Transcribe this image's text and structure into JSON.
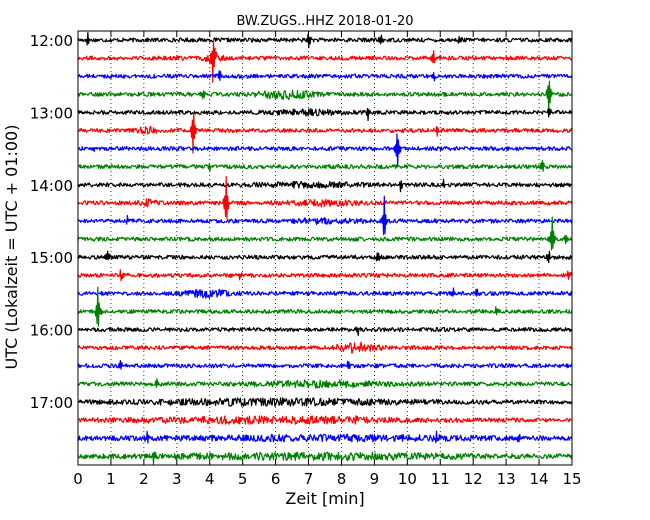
{
  "chart_data": {
    "type": "line",
    "title": "BW.ZUGS..HHZ 2018-01-20",
    "xlabel": "Zeit  [min]",
    "ylabel": "UTC (Lokalzeit = UTC + 01:00)",
    "xlim": [
      0,
      15
    ],
    "x_ticks": [
      0,
      1,
      2,
      3,
      4,
      5,
      6,
      7,
      8,
      9,
      10,
      11,
      12,
      13,
      14,
      15
    ],
    "x_tick_labels": [
      "0",
      "1",
      "2",
      "3",
      "4",
      "5",
      "6",
      "7",
      "8",
      "9",
      "10",
      "11",
      "12",
      "13",
      "14",
      "15"
    ],
    "y_tick_labels": [
      "12:00",
      "13:00",
      "14:00",
      "15:00",
      "16:00",
      "17:00"
    ],
    "trace_cycle_colors": [
      "#000000",
      "#ff0000",
      "#0000ff",
      "#008000"
    ],
    "grid": "vertical dotted",
    "traces": [
      {
        "start": "12:00",
        "color": "#000000",
        "events": [
          {
            "t": 0.3,
            "amp": 0.35
          },
          {
            "t": 7.0,
            "amp": 0.5
          },
          {
            "t": 9.2,
            "amp": 0.4
          },
          {
            "t": 11.6,
            "amp": 0.3
          }
        ],
        "bursts": []
      },
      {
        "start": "12:15",
        "color": "#ff0000",
        "events": [
          {
            "t": 4.1,
            "amp": 1.6
          },
          {
            "t": 10.8,
            "amp": 0.35
          }
        ],
        "bursts": [
          {
            "t": 4.1,
            "width": 0.5,
            "amp": 0.4
          }
        ]
      },
      {
        "start": "12:30",
        "color": "#0000ff",
        "events": [
          {
            "t": 4.3,
            "amp": 0.35
          },
          {
            "t": 10.8,
            "amp": 0.3
          }
        ],
        "bursts": []
      },
      {
        "start": "12:45",
        "color": "#008000",
        "events": [
          {
            "t": 3.8,
            "amp": 0.4
          },
          {
            "t": 14.3,
            "amp": 1.3
          }
        ],
        "bursts": [
          {
            "t": 6.3,
            "width": 1.5,
            "amp": 0.5
          }
        ]
      },
      {
        "start": "13:00",
        "color": "#000000",
        "events": [
          {
            "t": 8.8,
            "amp": 0.45
          },
          {
            "t": 14.3,
            "amp": 0.35
          }
        ],
        "bursts": [
          {
            "t": 7.0,
            "width": 2.0,
            "amp": 0.25
          }
        ]
      },
      {
        "start": "13:15",
        "color": "#ff0000",
        "events": [
          {
            "t": 3.5,
            "amp": 1.5
          },
          {
            "t": 10.9,
            "amp": 0.35
          }
        ],
        "bursts": [
          {
            "t": 2.1,
            "width": 0.5,
            "amp": 0.35
          }
        ]
      },
      {
        "start": "13:30",
        "color": "#0000ff",
        "events": [
          {
            "t": 9.7,
            "amp": 1.3
          },
          {
            "t": 0.5,
            "amp": 0.25
          }
        ],
        "bursts": []
      },
      {
        "start": "13:45",
        "color": "#008000",
        "events": [
          {
            "t": 4.0,
            "amp": 0.35
          },
          {
            "t": 14.1,
            "amp": 0.35
          }
        ],
        "bursts": []
      },
      {
        "start": "14:00",
        "color": "#000000",
        "events": [
          {
            "t": 9.8,
            "amp": 0.35
          },
          {
            "t": 11.1,
            "amp": 0.3
          }
        ],
        "bursts": [
          {
            "t": 7.0,
            "width": 3.0,
            "amp": 0.2
          }
        ]
      },
      {
        "start": "14:15",
        "color": "#ff0000",
        "events": [
          {
            "t": 4.5,
            "amp": 1.6
          }
        ],
        "bursts": [
          {
            "t": 2.1,
            "width": 0.5,
            "amp": 0.35
          },
          {
            "t": 7.5,
            "width": 2.0,
            "amp": 0.25
          }
        ]
      },
      {
        "start": "14:30",
        "color": "#0000ff",
        "events": [
          {
            "t": 9.3,
            "amp": 1.4
          },
          {
            "t": 1.5,
            "amp": 0.25
          }
        ],
        "bursts": [
          {
            "t": 7.5,
            "width": 1.8,
            "amp": 0.2
          }
        ]
      },
      {
        "start": "14:45",
        "color": "#008000",
        "events": [
          {
            "t": 14.4,
            "amp": 1.2
          },
          {
            "t": 14.8,
            "amp": 0.35
          }
        ],
        "bursts": []
      },
      {
        "start": "15:00",
        "color": "#000000",
        "events": [
          {
            "t": 0.9,
            "amp": 0.4
          },
          {
            "t": 14.3,
            "amp": 0.35
          },
          {
            "t": 9.1,
            "amp": 0.3
          }
        ],
        "bursts": []
      },
      {
        "start": "15:15",
        "color": "#ff0000",
        "events": [
          {
            "t": 1.3,
            "amp": 0.3
          },
          {
            "t": 4.9,
            "amp": 0.3
          },
          {
            "t": 14.9,
            "amp": 0.35
          }
        ],
        "bursts": []
      },
      {
        "start": "15:30",
        "color": "#0000ff",
        "events": [
          {
            "t": 11.4,
            "amp": 0.3
          },
          {
            "t": 12.1,
            "amp": 0.3
          }
        ],
        "bursts": [
          {
            "t": 3.9,
            "width": 1.2,
            "amp": 0.4
          }
        ]
      },
      {
        "start": "15:45",
        "color": "#008000",
        "events": [
          {
            "t": 0.6,
            "amp": 1.4
          },
          {
            "t": 12.7,
            "amp": 0.3
          }
        ],
        "bursts": []
      },
      {
        "start": "16:00",
        "color": "#000000",
        "events": [
          {
            "t": 8.5,
            "amp": 0.3
          }
        ],
        "bursts": []
      },
      {
        "start": "16:15",
        "color": "#ff0000",
        "events": [],
        "bursts": [
          {
            "t": 8.5,
            "width": 1.2,
            "amp": 0.5
          }
        ]
      },
      {
        "start": "16:30",
        "color": "#0000ff",
        "events": [
          {
            "t": 1.3,
            "amp": 0.3
          },
          {
            "t": 8.2,
            "amp": 0.3
          }
        ],
        "bursts": []
      },
      {
        "start": "16:45",
        "color": "#008000",
        "events": [
          {
            "t": 2.4,
            "amp": 0.3
          }
        ],
        "bursts": [
          {
            "t": 7.5,
            "width": 4.0,
            "amp": 0.3
          }
        ]
      },
      {
        "start": "17:00",
        "color": "#000000",
        "events": [],
        "bursts": [
          {
            "t": 6.0,
            "width": 8.0,
            "amp": 0.3
          }
        ]
      },
      {
        "start": "17:15",
        "color": "#ff0000",
        "events": [
          {
            "t": 8.5,
            "amp": 0.3
          }
        ],
        "bursts": [
          {
            "t": 6.0,
            "width": 8.0,
            "amp": 0.3
          }
        ]
      },
      {
        "start": "17:30",
        "color": "#0000ff",
        "events": [
          {
            "t": 2.1,
            "amp": 0.4
          },
          {
            "t": 10.9,
            "amp": 0.35
          },
          {
            "t": 13.4,
            "amp": 0.3
          }
        ],
        "bursts": [
          {
            "t": 7.5,
            "width": 10.0,
            "amp": 0.25
          }
        ]
      },
      {
        "start": "17:45",
        "color": "#008000",
        "events": [
          {
            "t": 2.3,
            "amp": 0.4
          }
        ],
        "bursts": [
          {
            "t": 7.5,
            "width": 10.0,
            "amp": 0.3
          }
        ]
      }
    ]
  }
}
